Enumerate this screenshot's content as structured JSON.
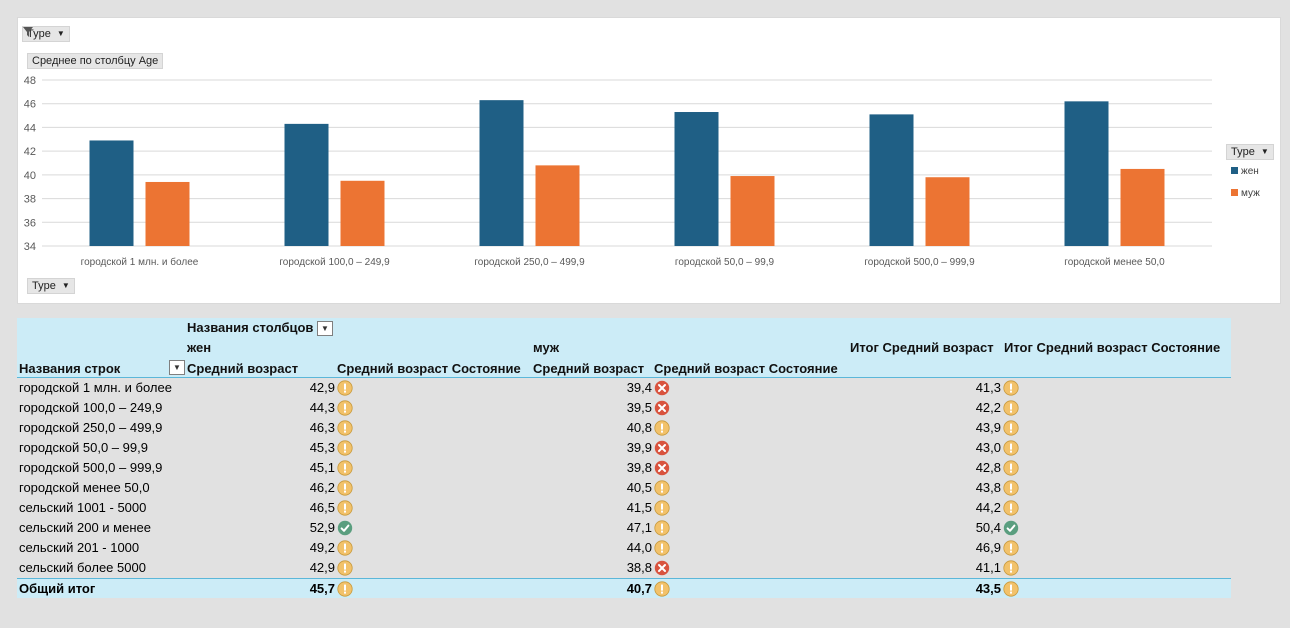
{
  "chart": {
    "filter_button": "Type",
    "value_button": "Среднее по столбцу Age",
    "axis_button": "Type",
    "legend_button": "Type"
  },
  "chart_data": {
    "type": "bar",
    "ylim": [
      34,
      48
    ],
    "yticks": [
      34,
      36,
      38,
      40,
      42,
      44,
      46,
      48
    ],
    "grid": true,
    "legend_position": "right",
    "categories": [
      "городской 1 млн. и более",
      "городской 100,0 – 249,9",
      "городской 250,0 – 499,9",
      "городской 50,0 – 99,9",
      "городской 500,0 – 999,9",
      "городской менее 50,0"
    ],
    "series": [
      {
        "name": "жен",
        "color": "#1f5f85",
        "values": [
          42.9,
          44.3,
          46.3,
          45.3,
          45.1,
          46.2
        ]
      },
      {
        "name": "муж",
        "color": "#ec7433",
        "values": [
          39.4,
          39.5,
          40.8,
          39.9,
          39.8,
          40.5
        ]
      }
    ]
  },
  "pivot": {
    "col_labels_header": "Названия столбцов",
    "row_labels_header": "Названия строк",
    "group_f": "жен",
    "group_m": "муж",
    "f_avg": "Средний возраст",
    "f_state": "Средний возраст Состояние",
    "m_avg": "Средний возраст",
    "m_state": "Средний возраст Состояние",
    "total_avg": "Итог Средний возраст",
    "total_state": "Итог Средний возраст Состояние",
    "rows": [
      {
        "label": "городской 1 млн. и более",
        "f": "42,9",
        "fi": "warn",
        "m": "39,4",
        "mi": "bad",
        "t": "41,3",
        "ti": "warn"
      },
      {
        "label": "городской 100,0 – 249,9",
        "f": "44,3",
        "fi": "warn",
        "m": "39,5",
        "mi": "bad",
        "t": "42,2",
        "ti": "warn"
      },
      {
        "label": "городской 250,0 – 499,9",
        "f": "46,3",
        "fi": "warn",
        "m": "40,8",
        "mi": "warn",
        "t": "43,9",
        "ti": "warn"
      },
      {
        "label": "городской 50,0 – 99,9",
        "f": "45,3",
        "fi": "warn",
        "m": "39,9",
        "mi": "bad",
        "t": "43,0",
        "ti": "warn"
      },
      {
        "label": "городской 500,0 – 999,9",
        "f": "45,1",
        "fi": "warn",
        "m": "39,8",
        "mi": "bad",
        "t": "42,8",
        "ti": "warn"
      },
      {
        "label": "городской менее 50,0",
        "f": "46,2",
        "fi": "warn",
        "m": "40,5",
        "mi": "warn",
        "t": "43,8",
        "ti": "warn"
      },
      {
        "label": "сельский 1001 - 5000",
        "f": "46,5",
        "fi": "warn",
        "m": "41,5",
        "mi": "warn",
        "t": "44,2",
        "ti": "warn"
      },
      {
        "label": "сельский 200 и менее",
        "f": "52,9",
        "fi": "good",
        "m": "47,1",
        "mi": "warn",
        "t": "50,4",
        "ti": "good"
      },
      {
        "label": "сельский 201 - 1000",
        "f": "49,2",
        "fi": "warn",
        "m": "44,0",
        "mi": "warn",
        "t": "46,9",
        "ti": "warn"
      },
      {
        "label": "сельский более 5000",
        "f": "42,9",
        "fi": "warn",
        "m": "38,8",
        "mi": "bad",
        "t": "41,1",
        "ti": "warn"
      }
    ],
    "total": {
      "label": "Общий итог",
      "f": "45,7",
      "fi": "warn",
      "m": "40,7",
      "mi": "warn",
      "t": "43,5",
      "ti": "warn"
    }
  },
  "icons": {
    "warn": {
      "name": "exclamation-icon",
      "color": "#f2c26b"
    },
    "bad": {
      "name": "cross-icon",
      "color": "#d9533e"
    },
    "good": {
      "name": "check-icon",
      "color": "#5a9e7f"
    }
  }
}
